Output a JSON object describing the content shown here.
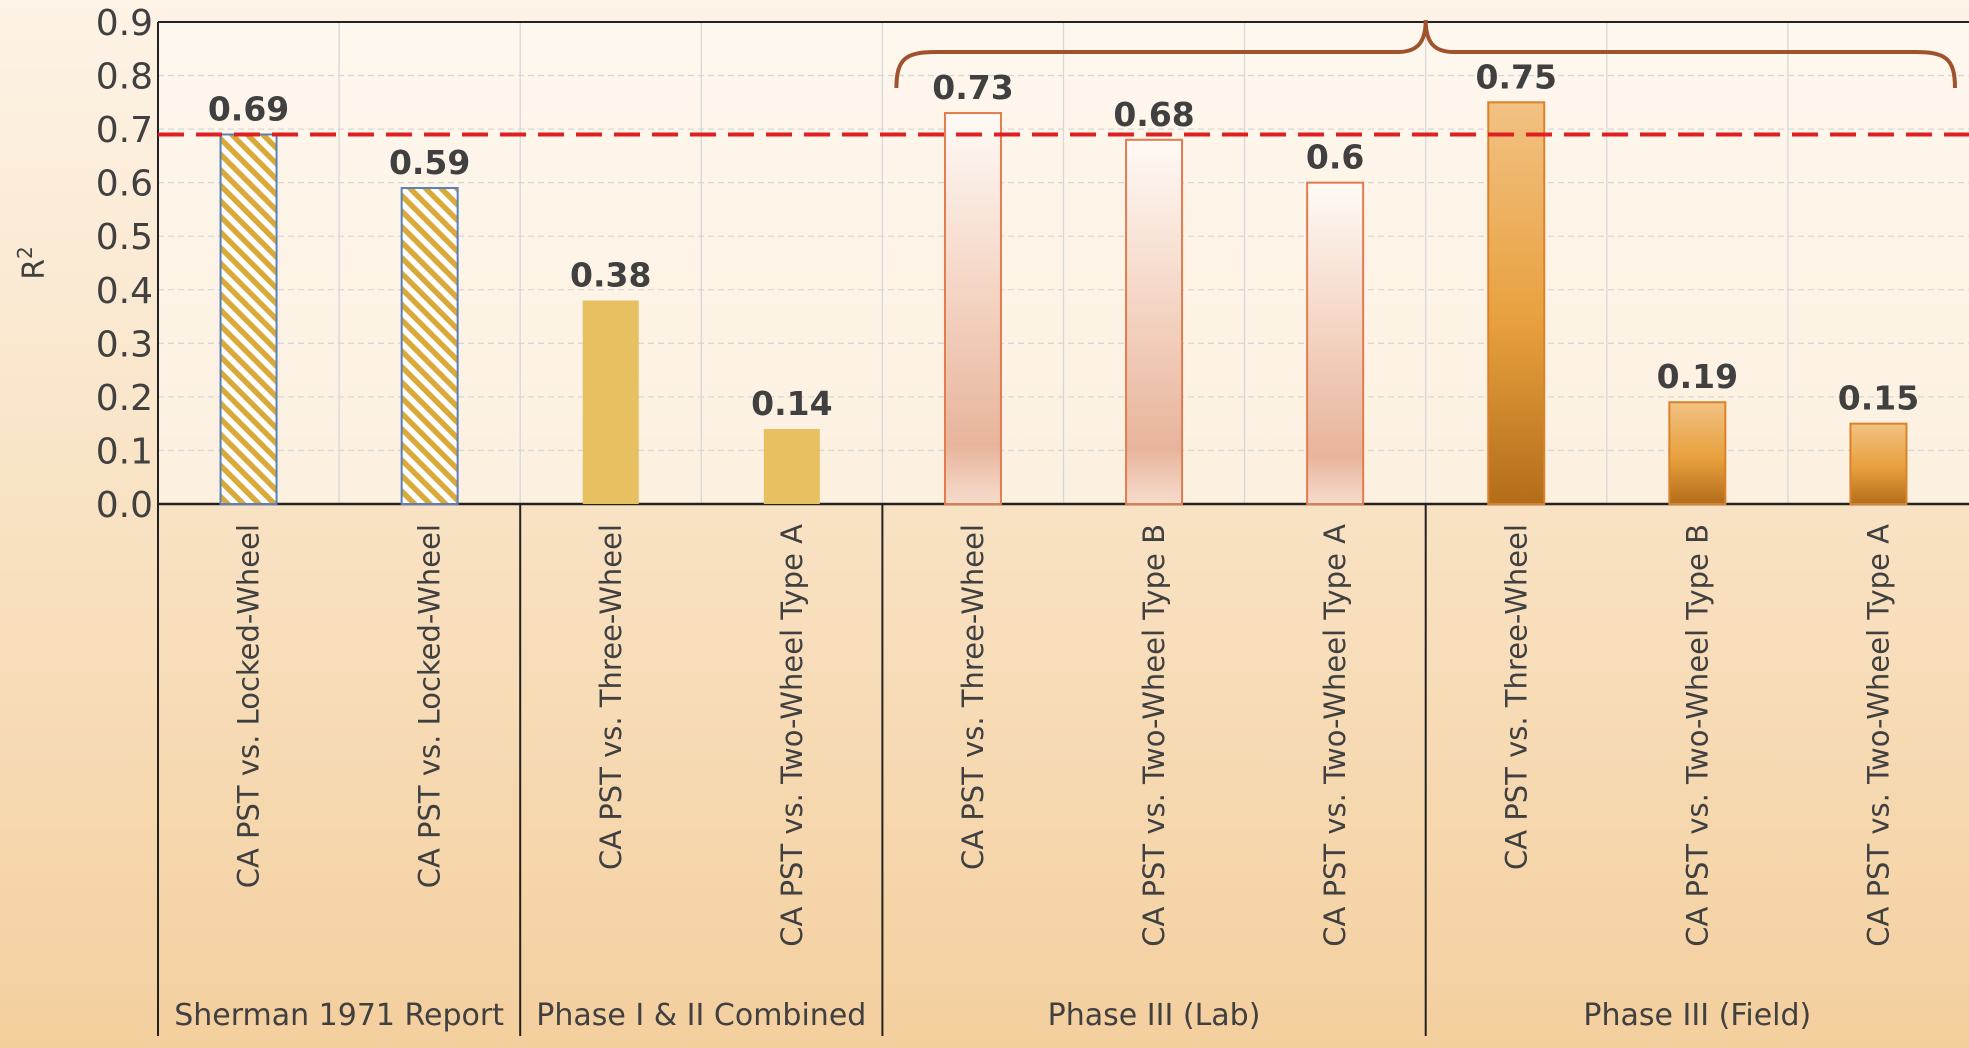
{
  "chart_data": {
    "type": "bar",
    "ylabel": "R",
    "ylabel_superscript": "2",
    "ylim": [
      0,
      0.9
    ],
    "yticks": [
      "0.0",
      "0.1",
      "0.2",
      "0.3",
      "0.4",
      "0.5",
      "0.6",
      "0.7",
      "0.8",
      "0.9"
    ],
    "grid": true,
    "threshold": 0.69,
    "categories": [
      "CA PST vs. Locked-Wheel",
      "CA PST vs. Locked-Wheel",
      "CA PST vs. Three-Wheel",
      "CA PST vs. Two-Wheel Type A",
      "CA PST vs. Three-Wheel",
      "CA PST vs. Two-Wheel Type B",
      "CA PST vs. Two-Wheel Type A",
      "CA PST vs. Three-Wheel",
      "CA PST vs. Two-Wheel Type B",
      "CA PST vs. Two-Wheel Type A"
    ],
    "values": [
      0.69,
      0.59,
      0.38,
      0.14,
      0.73,
      0.68,
      0.6,
      0.75,
      0.19,
      0.15
    ],
    "value_labels": [
      "0.69",
      "0.59",
      "0.38",
      "0.14",
      "0.73",
      "0.68",
      "0.6",
      "0.75",
      "0.19",
      "0.15"
    ],
    "styles": [
      "hatch",
      "hatch",
      "solid",
      "solid",
      "lab",
      "lab",
      "lab",
      "field",
      "field",
      "field"
    ],
    "groups": [
      {
        "name": "Sherman 1971 Report",
        "start": 0,
        "count": 2
      },
      {
        "name": "Phase I & II Combined",
        "start": 2,
        "count": 2
      },
      {
        "name": "Phase III (Lab)",
        "start": 4,
        "count": 3
      },
      {
        "name": "Phase III (Field)",
        "start": 7,
        "count": 3
      }
    ],
    "brace_over": [
      4,
      9
    ]
  },
  "colors": {
    "hatch_stripe": "#d9a93a",
    "hatch_border": "#5a7fb8",
    "solid": "#e6c061",
    "lab_stroke": "#e27c4f",
    "field_stroke": "#d9822b",
    "threshold": "#e02020",
    "brace": "#a0522d",
    "grid": "#d7d7d7"
  }
}
